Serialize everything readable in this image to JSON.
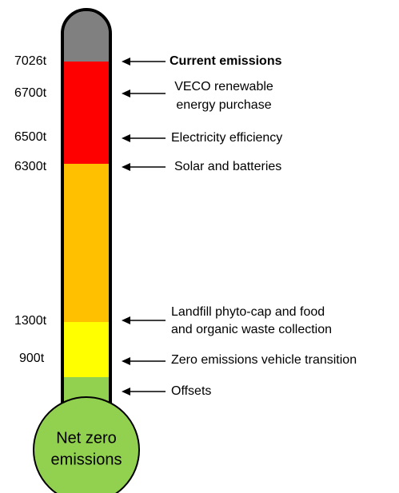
{
  "levels": [
    {
      "amount": "7026t",
      "text": [
        "Current emissions"
      ]
    },
    {
      "amount": "6700t",
      "text": [
        "VECO renewable",
        "energy purchase"
      ]
    },
    {
      "amount": "6500t",
      "text": [
        "Electricity efficiency"
      ]
    },
    {
      "amount": "6300t",
      "text": [
        "Solar and batteries"
      ]
    },
    {
      "amount": "1300t",
      "text": [
        "Landfill phyto-cap and food",
        "and organic waste collection"
      ]
    },
    {
      "amount": "900t",
      "text": [
        "Zero emissions vehicle transition"
      ]
    },
    {
      "text": [
        "Offsets"
      ]
    }
  ],
  "bulb": [
    "Net zero",
    "emissions"
  ]
}
